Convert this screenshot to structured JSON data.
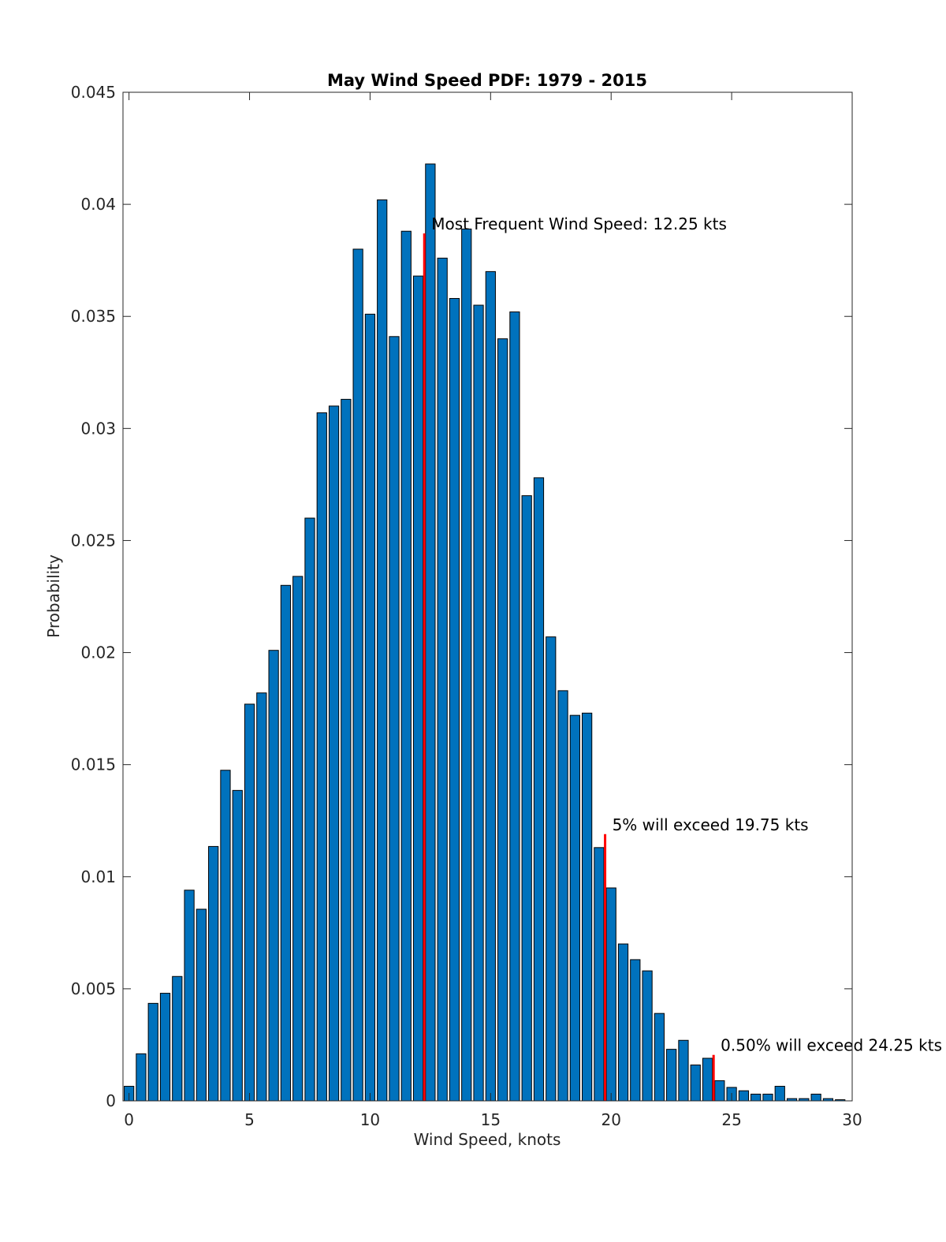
{
  "chart_data": {
    "type": "bar",
    "title": "May Wind Speed PDF: 1979 - 2015",
    "xlabel": "Wind Speed, knots",
    "ylabel": "Probability",
    "xlim": [
      -0.25,
      30
    ],
    "ylim": [
      0,
      0.045
    ],
    "grid": false,
    "bar_width": 0.4,
    "bar_color": "#0072BD",
    "bar_edge": "#000000",
    "xticks": [
      0,
      5,
      10,
      15,
      20,
      25,
      30
    ],
    "xtick_labels": [
      "0",
      "5",
      "10",
      "15",
      "20",
      "25",
      "30"
    ],
    "yticks": [
      0,
      0.005,
      0.01,
      0.015,
      0.02,
      0.025,
      0.03,
      0.035,
      0.04,
      0.045
    ],
    "ytick_labels": [
      "0",
      "0.005",
      "0.01",
      "0.015",
      "0.02",
      "0.025",
      "0.03",
      "0.035",
      "0.04",
      "0.045"
    ],
    "x": [
      0,
      0.5,
      1,
      1.5,
      2,
      2.5,
      3,
      3.5,
      4,
      4.5,
      5,
      5.5,
      6,
      6.5,
      7,
      7.5,
      8,
      8.5,
      9,
      9.5,
      10,
      10.5,
      11,
      11.5,
      12,
      12.5,
      13,
      13.5,
      14,
      14.5,
      15,
      15.5,
      16,
      16.5,
      17,
      17.5,
      18,
      18.5,
      19,
      19.5,
      20,
      20.5,
      21,
      21.5,
      22,
      22.5,
      23,
      23.5,
      24,
      24.5,
      25,
      25.5,
      26,
      26.5,
      27,
      27.5,
      28,
      28.5,
      29,
      29.5
    ],
    "values": [
      0.00065,
      0.0021,
      0.00435,
      0.0048,
      0.00555,
      0.0094,
      0.00855,
      0.01135,
      0.01475,
      0.01385,
      0.0177,
      0.0182,
      0.0201,
      0.023,
      0.0234,
      0.026,
      0.0307,
      0.031,
      0.0313,
      0.038,
      0.0351,
      0.0402,
      0.0341,
      0.0388,
      0.0368,
      0.0418,
      0.0376,
      0.0358,
      0.0389,
      0.0355,
      0.037,
      0.034,
      0.0352,
      0.027,
      0.0278,
      0.0207,
      0.0183,
      0.0172,
      0.0173,
      0.0113,
      0.0095,
      0.007,
      0.0063,
      0.0058,
      0.0039,
      0.0023,
      0.0027,
      0.0016,
      0.0019,
      0.0009,
      0.0006,
      0.00045,
      0.0003,
      0.0003,
      0.00065,
      0.0001,
      0.0001,
      0.0003,
      0.0001,
      5e-05
    ],
    "annotations": [
      {
        "x": 12.25,
        "y_top": 0.0387,
        "text": "Most Frequent Wind Speed: 12.25 kts",
        "color": "#FF0000"
      },
      {
        "x": 19.75,
        "y_top": 0.0119,
        "text": "5% will exceed 19.75 kts",
        "color": "#FF0000"
      },
      {
        "x": 24.25,
        "y_top": 0.00205,
        "text": "0.50% will exceed 24.25 kts",
        "color": "#FF0000"
      }
    ]
  }
}
